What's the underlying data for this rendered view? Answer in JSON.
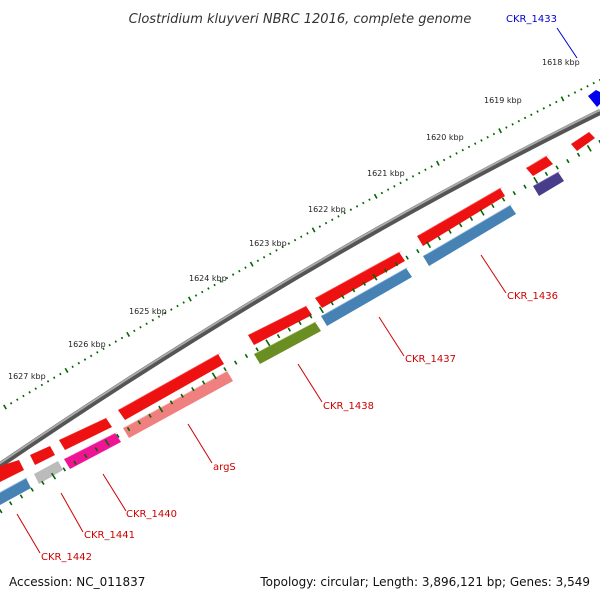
{
  "title": "Clostridium kluyveri NBRC 12016, complete genome",
  "footer": {
    "accession": "Accession: NC_011837",
    "summary": "Topology: circular; Length: 3,896,121 bp; Genes: 3,549"
  },
  "ticks": [
    "1618 kbp",
    "1619 kbp",
    "1620 kbp",
    "1621 kbp",
    "1622 kbp",
    "1623 kbp",
    "1624 kbp",
    "1625 kbp",
    "1626 kbp",
    "1627 kbp"
  ],
  "labels": [
    {
      "text": "CKR_1433",
      "color": "#0000cc"
    },
    {
      "text": "CKR_1436",
      "color": "#cc0000"
    },
    {
      "text": "CKR_1437",
      "color": "#cc0000"
    },
    {
      "text": "CKR_1438",
      "color": "#cc0000"
    },
    {
      "text": "argS",
      "color": "#cc0000"
    },
    {
      "text": "CKR_1440",
      "color": "#cc0000"
    },
    {
      "text": "CKR_1441",
      "color": "#cc0000"
    },
    {
      "text": "CKR_1442",
      "color": "#cc0000"
    }
  ],
  "colors": {
    "cds": "#ee1111",
    "blue_gene": "#4682b4",
    "olive_gene": "#6b8e23",
    "salmon_gene": "#f08080",
    "magenta_gene": "#ee1493",
    "gray_gene": "#bbbbbb",
    "navy_gene": "#483d8b",
    "backbone": "#888888",
    "tick": "#006600"
  }
}
